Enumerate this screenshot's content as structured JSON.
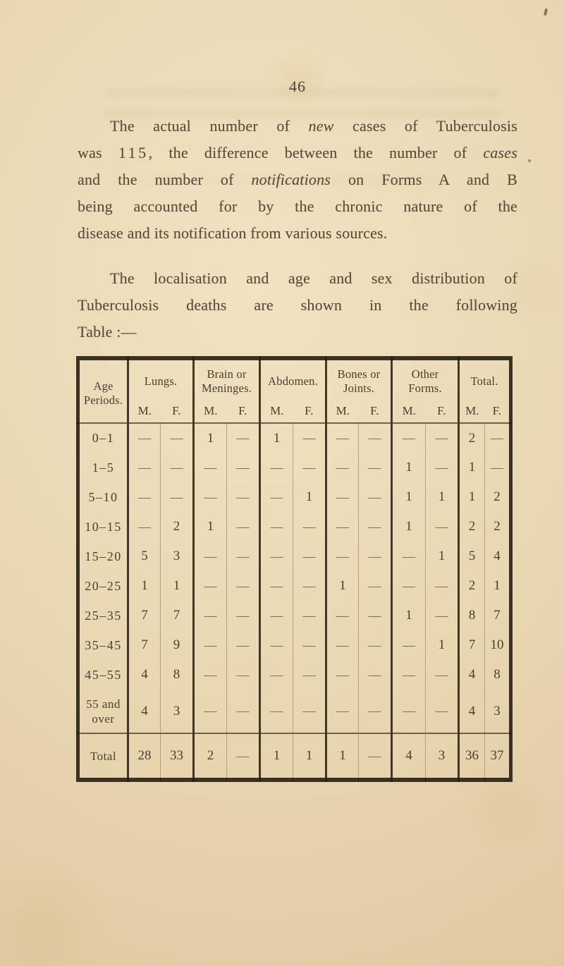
{
  "page": {
    "number": "46"
  },
  "paragraph1": {
    "lines": [
      [
        {
          "t": "The actual number of "
        },
        {
          "t": "new",
          "i": true
        },
        {
          "t": " cases of Tuberculosis"
        }
      ],
      [
        {
          "t": "was "
        },
        {
          "t": "115",
          "sp": true
        },
        {
          "t": ", the difference between the number of "
        },
        {
          "t": "cases",
          "i": true
        }
      ],
      [
        {
          "t": "and the number of "
        },
        {
          "t": "notifications",
          "i": true
        },
        {
          "t": " on Forms A and B"
        }
      ],
      [
        {
          "t": "being accounted for by the chronic nature of the"
        }
      ],
      [
        {
          "t": "disease and its notification from various sources."
        }
      ]
    ]
  },
  "paragraph2": {
    "lines": [
      [
        {
          "t": "The localisation and age and sex distribution of"
        }
      ],
      [
        {
          "t": "Tuberculosis deaths are shown in the following"
        }
      ],
      [
        {
          "t": "Table :—"
        }
      ]
    ]
  },
  "table": {
    "age_header": "Age Periods.",
    "m_label": "M.",
    "f_label": "F.",
    "groups": [
      {
        "label": "Lungs."
      },
      {
        "label": "Brain or Meninges."
      },
      {
        "label": "Abdomen."
      },
      {
        "label": "Bones or Joints."
      },
      {
        "label": "Other Forms."
      },
      {
        "label": "Total."
      }
    ],
    "rows": [
      {
        "age": "0–1",
        "cells": [
          "—",
          "—",
          "1",
          "—",
          "1",
          "—",
          "—",
          "—",
          "—",
          "—",
          "2",
          "—"
        ]
      },
      {
        "age": "1–5",
        "cells": [
          "—",
          "—",
          "—",
          "—",
          "—",
          "—",
          "—",
          "—",
          "1",
          "—",
          "1",
          "—"
        ]
      },
      {
        "age": "5–10",
        "cells": [
          "—",
          "—",
          "—",
          "—",
          "—",
          "1",
          "—",
          "—",
          "1",
          "1",
          "1",
          "2"
        ]
      },
      {
        "age": "10–15",
        "cells": [
          "—",
          "2",
          "1",
          "—",
          "—",
          "—",
          "—",
          "—",
          "1",
          "—",
          "2",
          "2"
        ]
      },
      {
        "age": "15–20",
        "cells": [
          "5",
          "3",
          "—",
          "—",
          "—",
          "—",
          "—",
          "—",
          "—",
          "1",
          "5",
          "4"
        ]
      },
      {
        "age": "20–25",
        "cells": [
          "1",
          "1",
          "—",
          "—",
          "—",
          "—",
          "1",
          "—",
          "—",
          "—",
          "2",
          "1"
        ]
      },
      {
        "age": "25–35",
        "cells": [
          "7",
          "7",
          "—",
          "—",
          "—",
          "—",
          "—",
          "—",
          "1",
          "—",
          "8",
          "7"
        ]
      },
      {
        "age": "35–45",
        "cells": [
          "7",
          "9",
          "—",
          "—",
          "—",
          "—",
          "—",
          "—",
          "—",
          "1",
          "7",
          "10"
        ]
      },
      {
        "age": "45–55",
        "cells": [
          "4",
          "8",
          "—",
          "—",
          "—",
          "—",
          "—",
          "—",
          "—",
          "—",
          "4",
          "8"
        ]
      },
      {
        "age": "55 and over",
        "cells": [
          "4",
          "3",
          "—",
          "—",
          "—",
          "—",
          "—",
          "—",
          "—",
          "—",
          "4",
          "3"
        ]
      }
    ],
    "total_row": {
      "label": "Total",
      "cells": [
        "28",
        "33",
        "2",
        "—",
        "1",
        "1",
        "1",
        "—",
        "4",
        "3",
        "36",
        "37"
      ]
    }
  }
}
